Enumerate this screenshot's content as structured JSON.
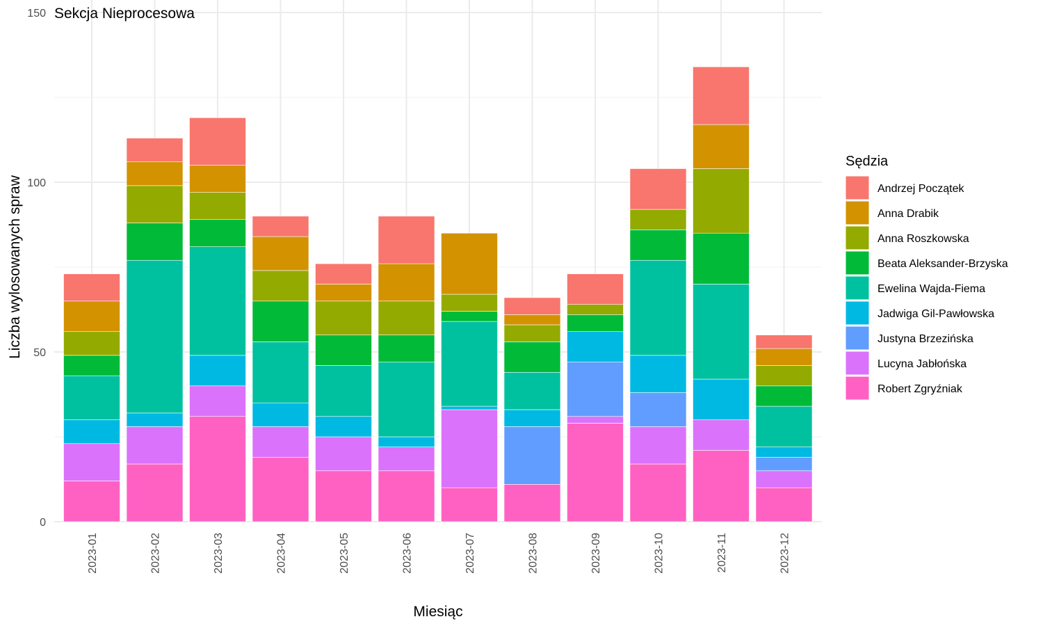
{
  "chart_data": {
    "type": "bar",
    "stacked": true,
    "title": "Sekcja Nieprocesowa",
    "xlabel": "Miesiąc",
    "ylabel": "Liczba wylosowanych spraw",
    "ylim": [
      0,
      150
    ],
    "yticks": [
      0,
      50,
      100,
      150
    ],
    "grid": true,
    "legend_title": "Sędzia",
    "legend_position": "right",
    "categories": [
      "2023-01",
      "2023-02",
      "2023-03",
      "2023-04",
      "2023-05",
      "2023-06",
      "2023-07",
      "2023-08",
      "2023-09",
      "2023-10",
      "2023-11",
      "2023-12"
    ],
    "series": [
      {
        "name": "Andrzej Początek",
        "color": "#F8766D",
        "values": [
          8,
          7,
          14,
          6,
          6,
          14,
          0,
          5,
          9,
          12,
          17,
          4
        ]
      },
      {
        "name": "Anna Drabik",
        "color": "#D39200",
        "values": [
          9,
          7,
          8,
          10,
          5,
          11,
          18,
          3,
          0,
          0,
          13,
          5
        ]
      },
      {
        "name": "Anna Roszkowska",
        "color": "#93AA00",
        "values": [
          7,
          11,
          8,
          9,
          10,
          10,
          5,
          5,
          3,
          6,
          19,
          6
        ]
      },
      {
        "name": "Beata Aleksander-Brzyska",
        "color": "#00BA38",
        "values": [
          6,
          11,
          8,
          12,
          9,
          8,
          3,
          9,
          5,
          9,
          15,
          6
        ]
      },
      {
        "name": "Ewelina Wajda-Fiema",
        "color": "#00C19F",
        "values": [
          13,
          45,
          32,
          18,
          15,
          22,
          25,
          11,
          0,
          28,
          28,
          12
        ]
      },
      {
        "name": "Jadwiga Gil-Pawłowska",
        "color": "#00B9E3",
        "values": [
          7,
          4,
          9,
          7,
          6,
          3,
          1,
          5,
          9,
          11,
          12,
          3
        ]
      },
      {
        "name": "Justyna Brzezińska",
        "color": "#619CFF",
        "values": [
          0,
          0,
          0,
          0,
          0,
          0,
          0,
          17,
          16,
          10,
          0,
          4
        ]
      },
      {
        "name": "Lucyna Jabłońska",
        "color": "#DB72FB",
        "values": [
          11,
          11,
          9,
          9,
          10,
          7,
          23,
          0,
          2,
          11,
          9,
          5
        ]
      },
      {
        "name": "Robert Zgryźniak",
        "color": "#FF61C3",
        "values": [
          12,
          17,
          31,
          19,
          15,
          15,
          10,
          11,
          29,
          17,
          21,
          10
        ]
      }
    ]
  }
}
